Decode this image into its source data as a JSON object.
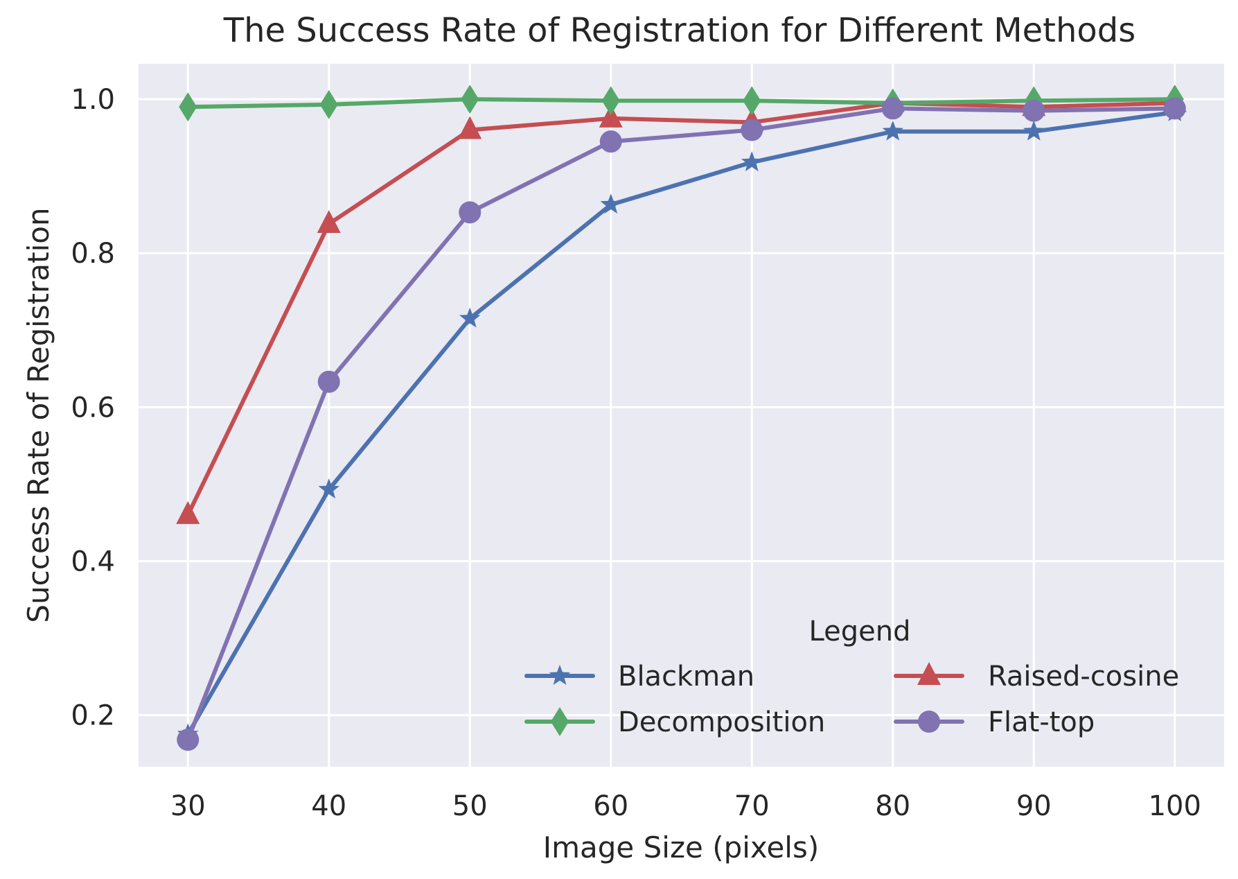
{
  "chart_data": {
    "type": "line",
    "title": "The Success Rate of Registration for Different Methods",
    "xlabel": "Image Size (pixels)",
    "ylabel": "Success Rate of Registration",
    "x": [
      30,
      40,
      50,
      60,
      70,
      80,
      90,
      100
    ],
    "xlim": [
      26.5,
      103.5
    ],
    "ylim": [
      0.133,
      1.046
    ],
    "xticks": [
      "30",
      "40",
      "50",
      "60",
      "70",
      "80",
      "90",
      "100"
    ],
    "yticks": [
      "0.2",
      "0.4",
      "0.6",
      "0.8",
      "1.0"
    ],
    "grid": true,
    "legend": {
      "title": "Legend",
      "placement": "lower-right",
      "columns": 2
    },
    "series": [
      {
        "name": "Blackman",
        "marker": "star",
        "color": "#4c72b0",
        "values": [
          0.175,
          0.493,
          0.715,
          0.863,
          0.918,
          0.958,
          0.958,
          0.983
        ]
      },
      {
        "name": "Raised-cosine",
        "marker": "triangle",
        "color": "#c44e52",
        "values": [
          0.46,
          0.838,
          0.96,
          0.975,
          0.97,
          0.995,
          0.99,
          0.995
        ]
      },
      {
        "name": "Decomposition",
        "marker": "diamond",
        "color": "#55a868",
        "values": [
          0.99,
          0.993,
          1.0,
          0.998,
          0.998,
          0.995,
          0.998,
          1.0
        ]
      },
      {
        "name": "Flat-top",
        "marker": "circle",
        "color": "#8172b2",
        "values": [
          0.168,
          0.633,
          0.853,
          0.945,
          0.96,
          0.988,
          0.985,
          0.988
        ]
      }
    ]
  }
}
